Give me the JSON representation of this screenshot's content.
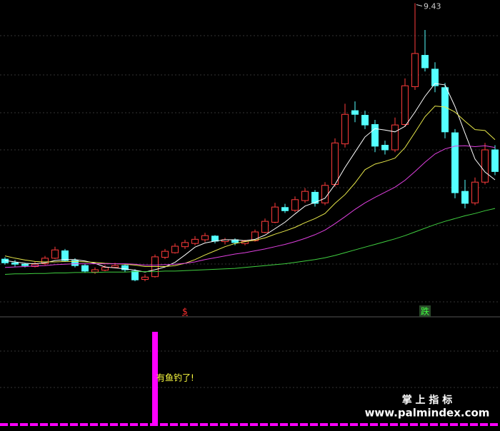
{
  "chart_data": {
    "type": "candlestick",
    "up_color": "#ff3c3c",
    "down_color": "#54ffff",
    "ylim": [
      3.0,
      9.5
    ],
    "candles": [
      [
        3.88,
        3.92,
        3.76,
        3.8
      ],
      [
        3.8,
        3.86,
        3.72,
        3.77
      ],
      [
        3.77,
        3.8,
        3.7,
        3.74
      ],
      [
        3.72,
        3.82,
        3.7,
        3.77
      ],
      [
        3.78,
        3.95,
        3.75,
        3.9
      ],
      [
        3.9,
        4.15,
        3.88,
        4.08
      ],
      [
        4.06,
        4.1,
        3.82,
        3.85
      ],
      [
        3.85,
        3.9,
        3.7,
        3.74
      ],
      [
        3.74,
        3.78,
        3.58,
        3.62
      ],
      [
        3.6,
        3.7,
        3.56,
        3.65
      ],
      [
        3.64,
        3.75,
        3.62,
        3.7
      ],
      [
        3.7,
        3.8,
        3.68,
        3.74
      ],
      [
        3.74,
        3.76,
        3.6,
        3.65
      ],
      [
        3.62,
        3.66,
        3.4,
        3.43
      ],
      [
        3.44,
        3.55,
        3.4,
        3.49
      ],
      [
        3.5,
        3.98,
        3.48,
        3.93
      ],
      [
        3.92,
        4.1,
        3.88,
        4.05
      ],
      [
        4.02,
        4.22,
        4.0,
        4.16
      ],
      [
        4.15,
        4.3,
        4.1,
        4.24
      ],
      [
        4.22,
        4.38,
        4.18,
        4.31
      ],
      [
        4.3,
        4.45,
        4.25,
        4.39
      ],
      [
        4.38,
        4.4,
        4.22,
        4.27
      ],
      [
        4.26,
        4.34,
        4.2,
        4.3
      ],
      [
        4.3,
        4.33,
        4.18,
        4.24
      ],
      [
        4.22,
        4.3,
        4.18,
        4.27
      ],
      [
        4.28,
        4.52,
        4.26,
        4.47
      ],
      [
        4.46,
        4.76,
        4.44,
        4.7
      ],
      [
        4.68,
        5.1,
        4.66,
        5.01
      ],
      [
        5.0,
        5.08,
        4.88,
        4.93
      ],
      [
        4.94,
        5.24,
        4.9,
        5.17
      ],
      [
        5.15,
        5.42,
        5.1,
        5.35
      ],
      [
        5.33,
        5.38,
        5.02,
        5.09
      ],
      [
        5.1,
        5.55,
        5.05,
        5.48
      ],
      [
        5.5,
        6.5,
        5.45,
        6.4
      ],
      [
        6.38,
        7.25,
        6.3,
        7.02
      ],
      [
        7.1,
        7.3,
        6.85,
        7.02
      ],
      [
        7.0,
        7.1,
        6.7,
        6.79
      ],
      [
        6.8,
        6.9,
        6.2,
        6.33
      ],
      [
        6.35,
        6.45,
        6.15,
        6.25
      ],
      [
        6.25,
        6.95,
        6.2,
        6.79
      ],
      [
        6.8,
        7.8,
        6.75,
        7.64
      ],
      [
        7.62,
        9.43,
        7.55,
        8.34
      ],
      [
        8.3,
        8.85,
        7.95,
        8.03
      ],
      [
        8.0,
        8.15,
        7.5,
        7.64
      ],
      [
        7.6,
        7.7,
        6.5,
        6.64
      ],
      [
        6.62,
        6.7,
        5.2,
        5.32
      ],
      [
        5.35,
        5.6,
        4.98,
        5.09
      ],
      [
        5.1,
        5.65,
        5.05,
        5.55
      ],
      [
        5.55,
        6.4,
        5.5,
        6.25
      ],
      [
        6.25,
        6.35,
        5.7,
        5.78
      ]
    ],
    "series": [
      {
        "color": "#ffffff",
        "values": [
          3.85,
          3.82,
          3.79,
          3.78,
          3.8,
          3.85,
          3.87,
          3.87,
          3.84,
          3.79,
          3.71,
          3.69,
          3.67,
          3.64,
          3.6,
          3.65,
          3.71,
          3.81,
          3.97,
          4.14,
          4.23,
          4.27,
          4.3,
          4.3,
          4.28,
          4.31,
          4.4,
          4.54,
          4.68,
          4.86,
          5.03,
          5.11,
          5.2,
          5.5,
          5.87,
          6.2,
          6.53,
          6.71,
          6.68,
          6.64,
          6.76,
          7.07,
          7.41,
          7.69,
          7.66,
          7.19,
          6.61,
          6.05,
          5.77,
          5.6
        ]
      },
      {
        "color": "#e8e84a",
        "values": [
          3.95,
          3.9,
          3.86,
          3.83,
          3.82,
          3.82,
          3.83,
          3.83,
          3.82,
          3.81,
          3.79,
          3.78,
          3.77,
          3.75,
          3.72,
          3.72,
          3.72,
          3.74,
          3.79,
          3.87,
          3.97,
          4.06,
          4.15,
          4.22,
          4.26,
          4.29,
          4.34,
          4.42,
          4.49,
          4.57,
          4.67,
          4.76,
          4.87,
          5.09,
          5.28,
          5.53,
          5.82,
          5.94,
          6.0,
          6.07,
          6.3,
          6.63,
          6.97,
          7.2,
          7.18,
          7.07,
          6.87,
          6.69,
          6.67,
          6.47
        ]
      },
      {
        "color": "#e040e0",
        "values": [
          3.7,
          3.71,
          3.72,
          3.73,
          3.74,
          3.76,
          3.77,
          3.78,
          3.78,
          3.78,
          3.78,
          3.78,
          3.78,
          3.77,
          3.75,
          3.75,
          3.76,
          3.77,
          3.79,
          3.82,
          3.87,
          3.91,
          3.95,
          3.99,
          4.02,
          4.06,
          4.1,
          4.15,
          4.2,
          4.26,
          4.33,
          4.41,
          4.51,
          4.65,
          4.8,
          4.96,
          5.1,
          5.22,
          5.33,
          5.44,
          5.59,
          5.78,
          5.98,
          6.16,
          6.27,
          6.33,
          6.34,
          6.32,
          6.34,
          6.3
        ]
      },
      {
        "color": "#40d040",
        "values": [
          3.55,
          3.56,
          3.56,
          3.57,
          3.57,
          3.58,
          3.58,
          3.59,
          3.59,
          3.59,
          3.6,
          3.6,
          3.6,
          3.61,
          3.61,
          3.61,
          3.62,
          3.62,
          3.63,
          3.64,
          3.65,
          3.66,
          3.67,
          3.68,
          3.7,
          3.72,
          3.74,
          3.76,
          3.78,
          3.81,
          3.84,
          3.87,
          3.91,
          3.96,
          4.02,
          4.08,
          4.14,
          4.2,
          4.26,
          4.32,
          4.39,
          4.47,
          4.55,
          4.63,
          4.7,
          4.76,
          4.82,
          4.87,
          4.93,
          4.98
        ]
      }
    ],
    "signal_labels": [
      null,
      null,
      null,
      null,
      null,
      null,
      null,
      null,
      null,
      null,
      null,
      null,
      null,
      null,
      null,
      null,
      null,
      null,
      "$",
      null,
      null,
      null,
      null,
      null,
      null,
      null,
      null,
      null,
      null,
      null,
      null,
      null,
      null,
      null,
      null,
      null,
      null,
      null,
      null,
      null,
      null,
      null,
      "跌",
      null,
      null,
      null,
      null,
      null,
      null,
      null
    ],
    "indicator": {
      "color": "#ff00ff",
      "ylim": [
        0,
        1
      ],
      "values": [
        0,
        0,
        0,
        0,
        0,
        0,
        0,
        0,
        0,
        0,
        0,
        0,
        0,
        0,
        0,
        1,
        0,
        0,
        0,
        0,
        0,
        0,
        0,
        0,
        0,
        0,
        0,
        0,
        0,
        0,
        0,
        0,
        0,
        0,
        0,
        0,
        0,
        0,
        0,
        0,
        0,
        0,
        0,
        0,
        0,
        0,
        0,
        0,
        0,
        0
      ],
      "annotation": "有鱼钓了!"
    }
  },
  "watermark": {
    "title": "掌 上 指 标",
    "url": "www.palmindex.com"
  }
}
